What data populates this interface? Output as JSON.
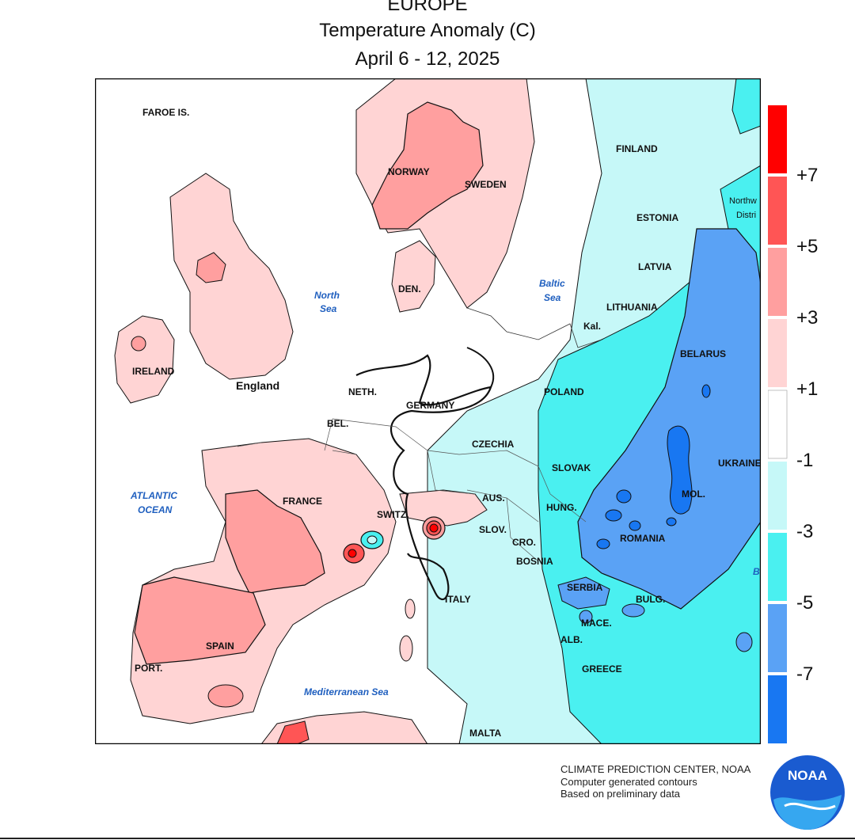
{
  "header": {
    "region": "EUROPE",
    "subtitle": "Temperature Anomaly (C)",
    "date_range": "April 6 - 12, 2025"
  },
  "map": {
    "labels": {
      "faroe": "FAROE IS.",
      "norway": "NORWAY",
      "sweden": "SWEDEN",
      "finland": "FINLAND",
      "estonia": "ESTONIA",
      "latvia": "LATVIA",
      "lithuania": "LITHUANIA",
      "kal": "Kal.",
      "belarus": "BELARUS",
      "ukraine": "UKRAINE",
      "poland": "POLAND",
      "czechia": "CZECHIA",
      "slovak": "SLOVAK",
      "hung": "HUNG.",
      "romania": "ROMANIA",
      "mol": "MOL.",
      "serbia": "SERBIA",
      "bulg": "BULG.",
      "mace": "MACE.",
      "alb": "ALB.",
      "greece": "GREECE",
      "cro": "CRO.",
      "bosnia": "BOSNIA",
      "slov": "SLOV.",
      "aus": "AUS.",
      "switz": "SWITZ.",
      "italy": "ITALY",
      "malta": "MALTA",
      "germany": "GERMANY",
      "neth": "NETH.",
      "bel": "BEL.",
      "den": "DEN.",
      "france": "FRANCE",
      "spain": "SPAIN",
      "port": "PORT.",
      "ireland": "IRELAND",
      "england": "England",
      "nw_district_1": "Northw",
      "nw_district_2": "Distri",
      "b_partial": "B"
    },
    "water_labels": {
      "north_sea_1": "North",
      "north_sea_2": "Sea",
      "baltic_1": "Baltic",
      "baltic_2": "Sea",
      "atlantic_1": "ATLANTIC",
      "atlantic_2": "OCEAN",
      "mediterranean": "Mediterranean Sea"
    }
  },
  "legend": {
    "bins": [
      {
        "color": "#ff0000"
      },
      {
        "color": "#ff5555"
      },
      {
        "color": "#ff9f9f"
      },
      {
        "color": "#ffd4d4"
      },
      {
        "color": "#ffffff"
      },
      {
        "color": "#c6f8f8"
      },
      {
        "color": "#4af0f0"
      },
      {
        "color": "#5aa2f5"
      },
      {
        "color": "#1877f2"
      }
    ],
    "tick_labels": [
      "+7",
      "+5",
      "+3",
      "+1",
      "-1",
      "-3",
      "-5",
      "-7"
    ]
  },
  "credits": {
    "line1": "CLIMATE PREDICTION CENTER, NOAA",
    "line2": "Computer generated contours",
    "line3": "Based on preliminary data"
  },
  "logo": {
    "text": "NOAA"
  },
  "colors": {
    "map_border": "#000000",
    "water_label": "#1f5fbf",
    "logo_blue": "#1a5bd0"
  }
}
